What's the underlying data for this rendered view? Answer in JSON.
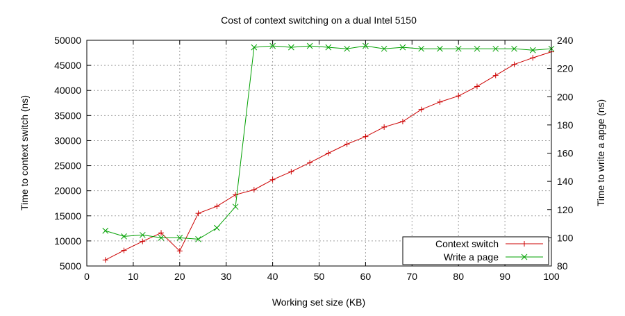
{
  "chart_data": {
    "type": "line",
    "title": "Cost of context switching on a dual Intel 5150",
    "xlabel": "Working set size (KB)",
    "ylabel_left": "Time to context switch (ns)",
    "ylabel_right": "Time to write a apge (ns)",
    "xlim": [
      0,
      100
    ],
    "ylim_left": [
      5000,
      50000
    ],
    "ylim_right": [
      80,
      240
    ],
    "xticks": [
      0,
      10,
      20,
      30,
      40,
      50,
      60,
      70,
      80,
      90,
      100
    ],
    "yticks_left": [
      5000,
      10000,
      15000,
      20000,
      25000,
      30000,
      35000,
      40000,
      45000,
      50000
    ],
    "yticks_right": [
      80,
      100,
      120,
      140,
      160,
      180,
      200,
      220,
      240
    ],
    "grid": true,
    "legend_position": "bottom-right",
    "series": [
      {
        "name": "Context switch",
        "axis": "left",
        "color": "#cc0000",
        "marker": "plus",
        "x": [
          4,
          8,
          12,
          16,
          20,
          24,
          28,
          32,
          36,
          40,
          44,
          48,
          52,
          56,
          60,
          64,
          68,
          72,
          76,
          80,
          84,
          88,
          92,
          96,
          100
        ],
        "y": [
          6200,
          8100,
          9900,
          11600,
          8000,
          15500,
          16900,
          19200,
          20200,
          22200,
          23800,
          25600,
          27500,
          29300,
          30800,
          32700,
          33800,
          36200,
          37700,
          38900,
          40800,
          43000,
          45200,
          46500,
          47700
        ]
      },
      {
        "name": "Write a page",
        "axis": "right",
        "color": "#00a000",
        "marker": "cross",
        "x": [
          4,
          8,
          12,
          16,
          20,
          24,
          28,
          32,
          36,
          40,
          44,
          48,
          52,
          56,
          60,
          64,
          68,
          72,
          76,
          80,
          84,
          88,
          92,
          96,
          100
        ],
        "y": [
          105,
          101,
          102,
          100,
          100,
          99,
          107,
          122,
          235,
          236,
          235,
          236,
          235,
          234,
          236,
          234,
          235,
          234,
          234,
          234,
          234,
          234,
          234,
          233,
          234
        ]
      }
    ]
  }
}
